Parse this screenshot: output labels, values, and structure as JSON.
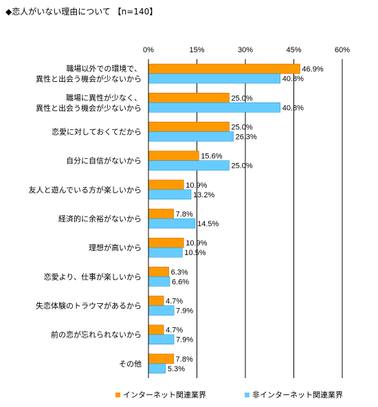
{
  "colors": {
    "series1": "#FF9900",
    "series2": "#66CCFF",
    "series1_stroke": "#CC6600",
    "series2_stroke": "#3399CC",
    "grid": "#000000"
  },
  "chart_data": {
    "type": "bar",
    "orientation": "horizontal",
    "title": "◆恋人がいない理由について 【n=140】",
    "xlim": [
      0,
      60
    ],
    "x_ticks": [
      "0%",
      "15%",
      "30%",
      "45%",
      "60%"
    ],
    "tick_values": [
      0,
      15,
      30,
      45,
      60
    ],
    "grid": true,
    "legend_position": "bottom",
    "categories": [
      "職場以外での環境で、\n異性と出会う機会が少ないから",
      "職場に異性が少なく、\n異性と出会う機会が少ないから",
      "恋愛に対しておくてだから",
      "自分に自信がないから",
      "友人と遊んでいる方が楽しいから",
      "経済的に余裕がないから",
      "理想が高いから",
      "恋愛より、仕事が楽しいから",
      "失恋体験のトラウマがあるから",
      "前の恋が忘れられないから",
      "その他"
    ],
    "series": [
      {
        "name": "インターネット関連業界",
        "values": [
          46.9,
          25.0,
          25.0,
          15.6,
          10.9,
          7.8,
          10.9,
          6.3,
          4.7,
          4.7,
          7.8
        ],
        "labels": [
          "46.9%",
          "25.0%",
          "25.0%",
          "15.6%",
          "10.9%",
          "7.8%",
          "10.9%",
          "6.3%",
          "4.7%",
          "4.7%",
          "7.8%"
        ]
      },
      {
        "name": "非インターネット関連業界",
        "values": [
          40.8,
          40.8,
          26.3,
          25.0,
          13.2,
          14.5,
          10.5,
          6.6,
          7.9,
          7.9,
          5.3
        ],
        "labels": [
          "40.8%",
          "40.8%",
          "26.3%",
          "25.0%",
          "13.2%",
          "14.5%",
          "10.5%",
          "6.6%",
          "7.9%",
          "7.9%",
          "5.3%"
        ]
      }
    ]
  }
}
